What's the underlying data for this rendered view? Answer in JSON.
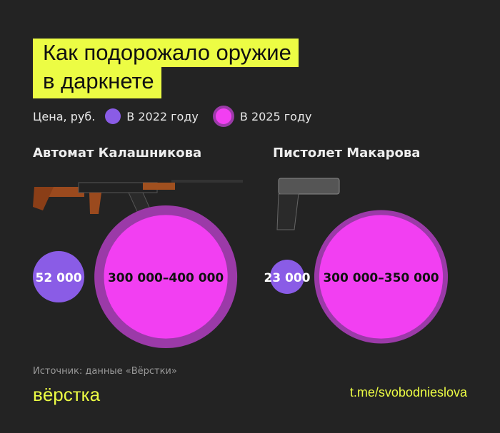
{
  "title": {
    "line1": "Как подорожало оружие",
    "line2": "в даркнете"
  },
  "legend": {
    "label": "Цена, руб.",
    "items": [
      "В 2022 году",
      "В 2025 году"
    ]
  },
  "colors": {
    "y2022": "#8a5ce6",
    "y2025": "#f23ff2",
    "ring": "#9b3aa8",
    "accent": "#ecfc44"
  },
  "chart_data": {
    "type": "bubble",
    "series": [
      {
        "name": "В 2022 году"
      },
      {
        "name": "В 2025 году"
      }
    ],
    "groups": [
      {
        "name": "Автомат Калашникова",
        "v2022": 52000,
        "v2022_label": "52 000",
        "v2025": [
          300000,
          400000
        ],
        "v2025_label": "300 000–400 000"
      },
      {
        "name": "Пистолет Макарова",
        "v2022": 23000,
        "v2022_label": "23 000",
        "v2025": [
          300000,
          350000
        ],
        "v2025_label": "300 000–350 000"
      }
    ]
  },
  "footer": {
    "source": "Источник: данные «Вёрстки»",
    "logo": "вёрстка",
    "link": "t.me/svobodnieslova"
  }
}
